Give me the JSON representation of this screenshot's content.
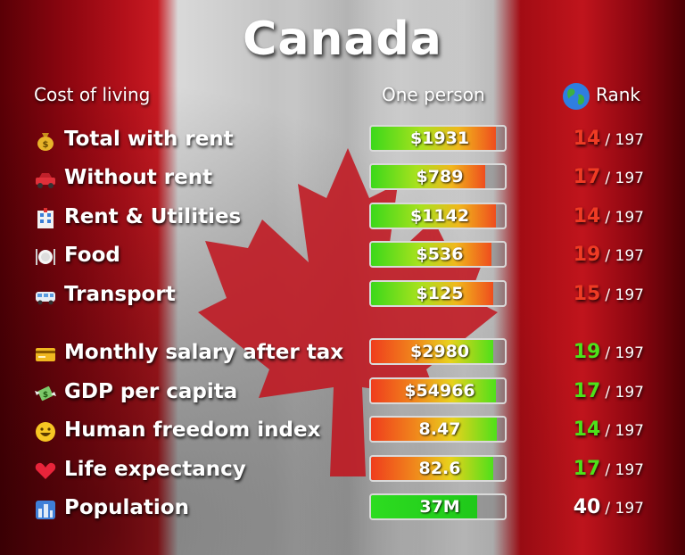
{
  "title": "Canada",
  "headers": {
    "cost": "Cost of living",
    "one_person": "One person",
    "rank": "Rank"
  },
  "rank_total": "/ 197",
  "rows": [
    {
      "label": "Total with rent",
      "icon": "money-bag-icon",
      "value": "$1931",
      "fill": 0.93,
      "rank": "14",
      "rank_color": "#ef3b24",
      "kind": "cost"
    },
    {
      "label": "Without rent",
      "icon": "car-icon",
      "value": "$789",
      "fill": 0.85,
      "rank": "17",
      "rank_color": "#ef3b24",
      "kind": "cost"
    },
    {
      "label": "Rent & Utilities",
      "icon": "hotel-icon",
      "value": "$1142",
      "fill": 0.93,
      "rank": "14",
      "rank_color": "#ef3b24",
      "kind": "cost"
    },
    {
      "label": "Food",
      "icon": "fork-knife-plate-icon",
      "value": "$536",
      "fill": 0.9,
      "rank": "19",
      "rank_color": "#ef3b24",
      "kind": "cost"
    },
    {
      "label": "Transport",
      "icon": "van-icon",
      "value": "$125",
      "fill": 0.91,
      "rank": "15",
      "rank_color": "#ef3b24",
      "kind": "cost"
    },
    {
      "label": "Monthly salary after tax",
      "icon": "credit-card-icon",
      "value": "$2980",
      "fill": 0.91,
      "rank": "19",
      "rank_color": "#4de21a",
      "kind": "good"
    },
    {
      "label": "GDP per capita",
      "icon": "money-wings-icon",
      "value": "$54966",
      "fill": 0.93,
      "rank": "17",
      "rank_color": "#4de21a",
      "kind": "good"
    },
    {
      "label": "Human freedom index",
      "icon": "smiley-icon",
      "value": "8.47",
      "fill": 0.94,
      "rank": "14",
      "rank_color": "#4de21a",
      "kind": "good"
    },
    {
      "label": "Life expectancy",
      "icon": "heart-icon",
      "value": "82.6",
      "fill": 0.91,
      "rank": "17",
      "rank_color": "#4de21a",
      "kind": "good"
    },
    {
      "label": "Population",
      "icon": "city-icon",
      "value": "37M",
      "fill": 0.79,
      "rank": "40",
      "rank_color": "#ffffff",
      "kind": "pop"
    }
  ]
}
